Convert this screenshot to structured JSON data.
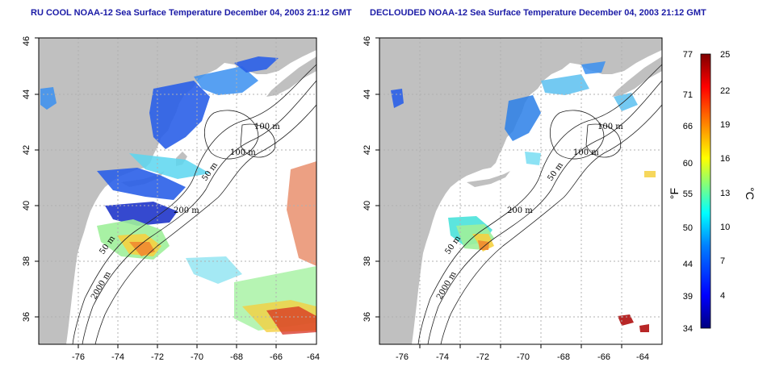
{
  "panels": [
    {
      "id": "ru-cool",
      "title": "RU COOL NOAA-12 Sea Surface Temperature December 04, 2003 21:12 GMT",
      "x_ticks": [
        "-76",
        "-74",
        "-72",
        "-70",
        "-68",
        "-66",
        "-64"
      ],
      "y_ticks": [
        "46",
        "44",
        "42",
        "40",
        "38",
        "36"
      ],
      "contour_labels": [
        "100 m",
        "100 m",
        "50 m",
        "200 m",
        "50 m",
        "2000 m"
      ]
    },
    {
      "id": "declouded",
      "title": "DECLOUDED NOAA-12 Sea Surface Temperature December 04, 2003 21:12 GMT",
      "x_ticks": [
        "-76",
        "-74",
        "-72",
        "-70",
        "-68",
        "-66",
        "-64"
      ],
      "y_ticks": [
        "46",
        "44",
        "42",
        "40",
        "38",
        "36"
      ],
      "contour_labels": [
        "100 m",
        "100 m",
        "50 m",
        "200 m",
        "50 m",
        "2000 m"
      ]
    }
  ],
  "colorbar": {
    "fahrenheit_ticks": [
      "77",
      "71",
      "66",
      "60",
      "55",
      "50",
      "44",
      "39",
      "34"
    ],
    "celsius_ticks": [
      "25",
      "22",
      "19",
      "16",
      "13",
      "10",
      "7",
      "4"
    ],
    "fahrenheit_unit": "°F",
    "celsius_unit": "°C",
    "colors": [
      "#00007f",
      "#0000ff",
      "#007fff",
      "#00ffff",
      "#7fff7f",
      "#ffff00",
      "#ff7f00",
      "#ff0000",
      "#7f0000"
    ]
  },
  "colors": {
    "land": "#c0c0c0",
    "title": "#1a1aa6",
    "grid": "#b0b0b0"
  }
}
